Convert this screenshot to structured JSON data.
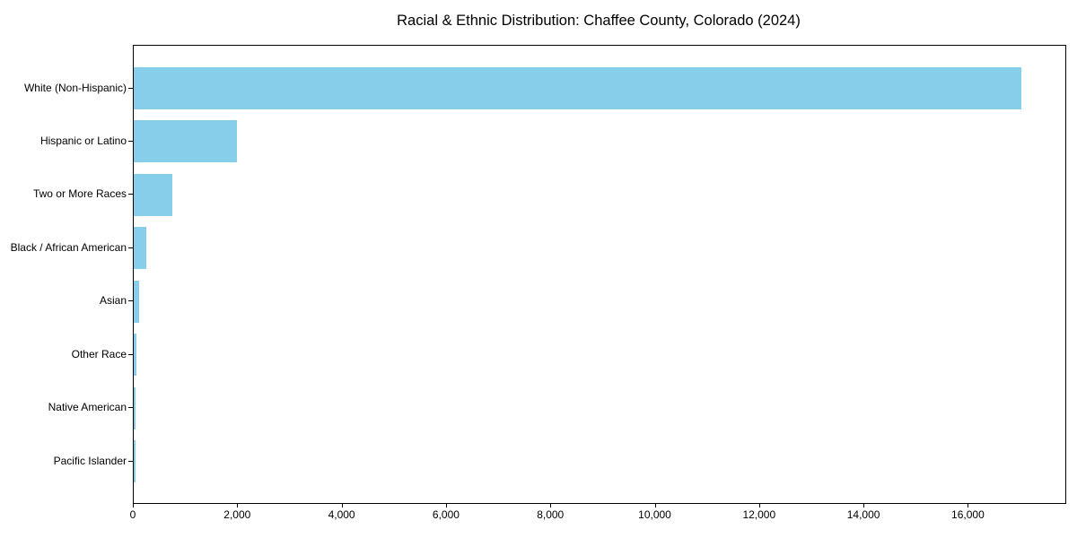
{
  "chart_data": {
    "type": "bar",
    "orientation": "horizontal",
    "title": "Racial & Ethnic Distribution: Chaffee County, Colorado (2024)",
    "categories": [
      "White (Non-Hispanic)",
      "Hispanic or Latino",
      "Two or More Races",
      "Black / African American",
      "Asian",
      "Other Race",
      "Native American",
      "Pacific Islander"
    ],
    "values": [
      17000,
      1980,
      740,
      240,
      105,
      55,
      30,
      40
    ],
    "xlabel": "",
    "ylabel": "",
    "xlim": [
      0,
      17850
    ],
    "x_ticks": [
      0,
      2000,
      4000,
      6000,
      8000,
      10000,
      12000,
      14000,
      16000
    ],
    "x_tick_labels": [
      "0",
      "2,000",
      "4,000",
      "6,000",
      "8,000",
      "10,000",
      "12,000",
      "14,000",
      "16,000"
    ],
    "bar_color": "#87CEEB",
    "grid": false,
    "legend": "none",
    "background": "#ffffff",
    "spine_color": "#000000",
    "largest_category": "White (Non-Hispanic)",
    "largest_value": 17000
  }
}
